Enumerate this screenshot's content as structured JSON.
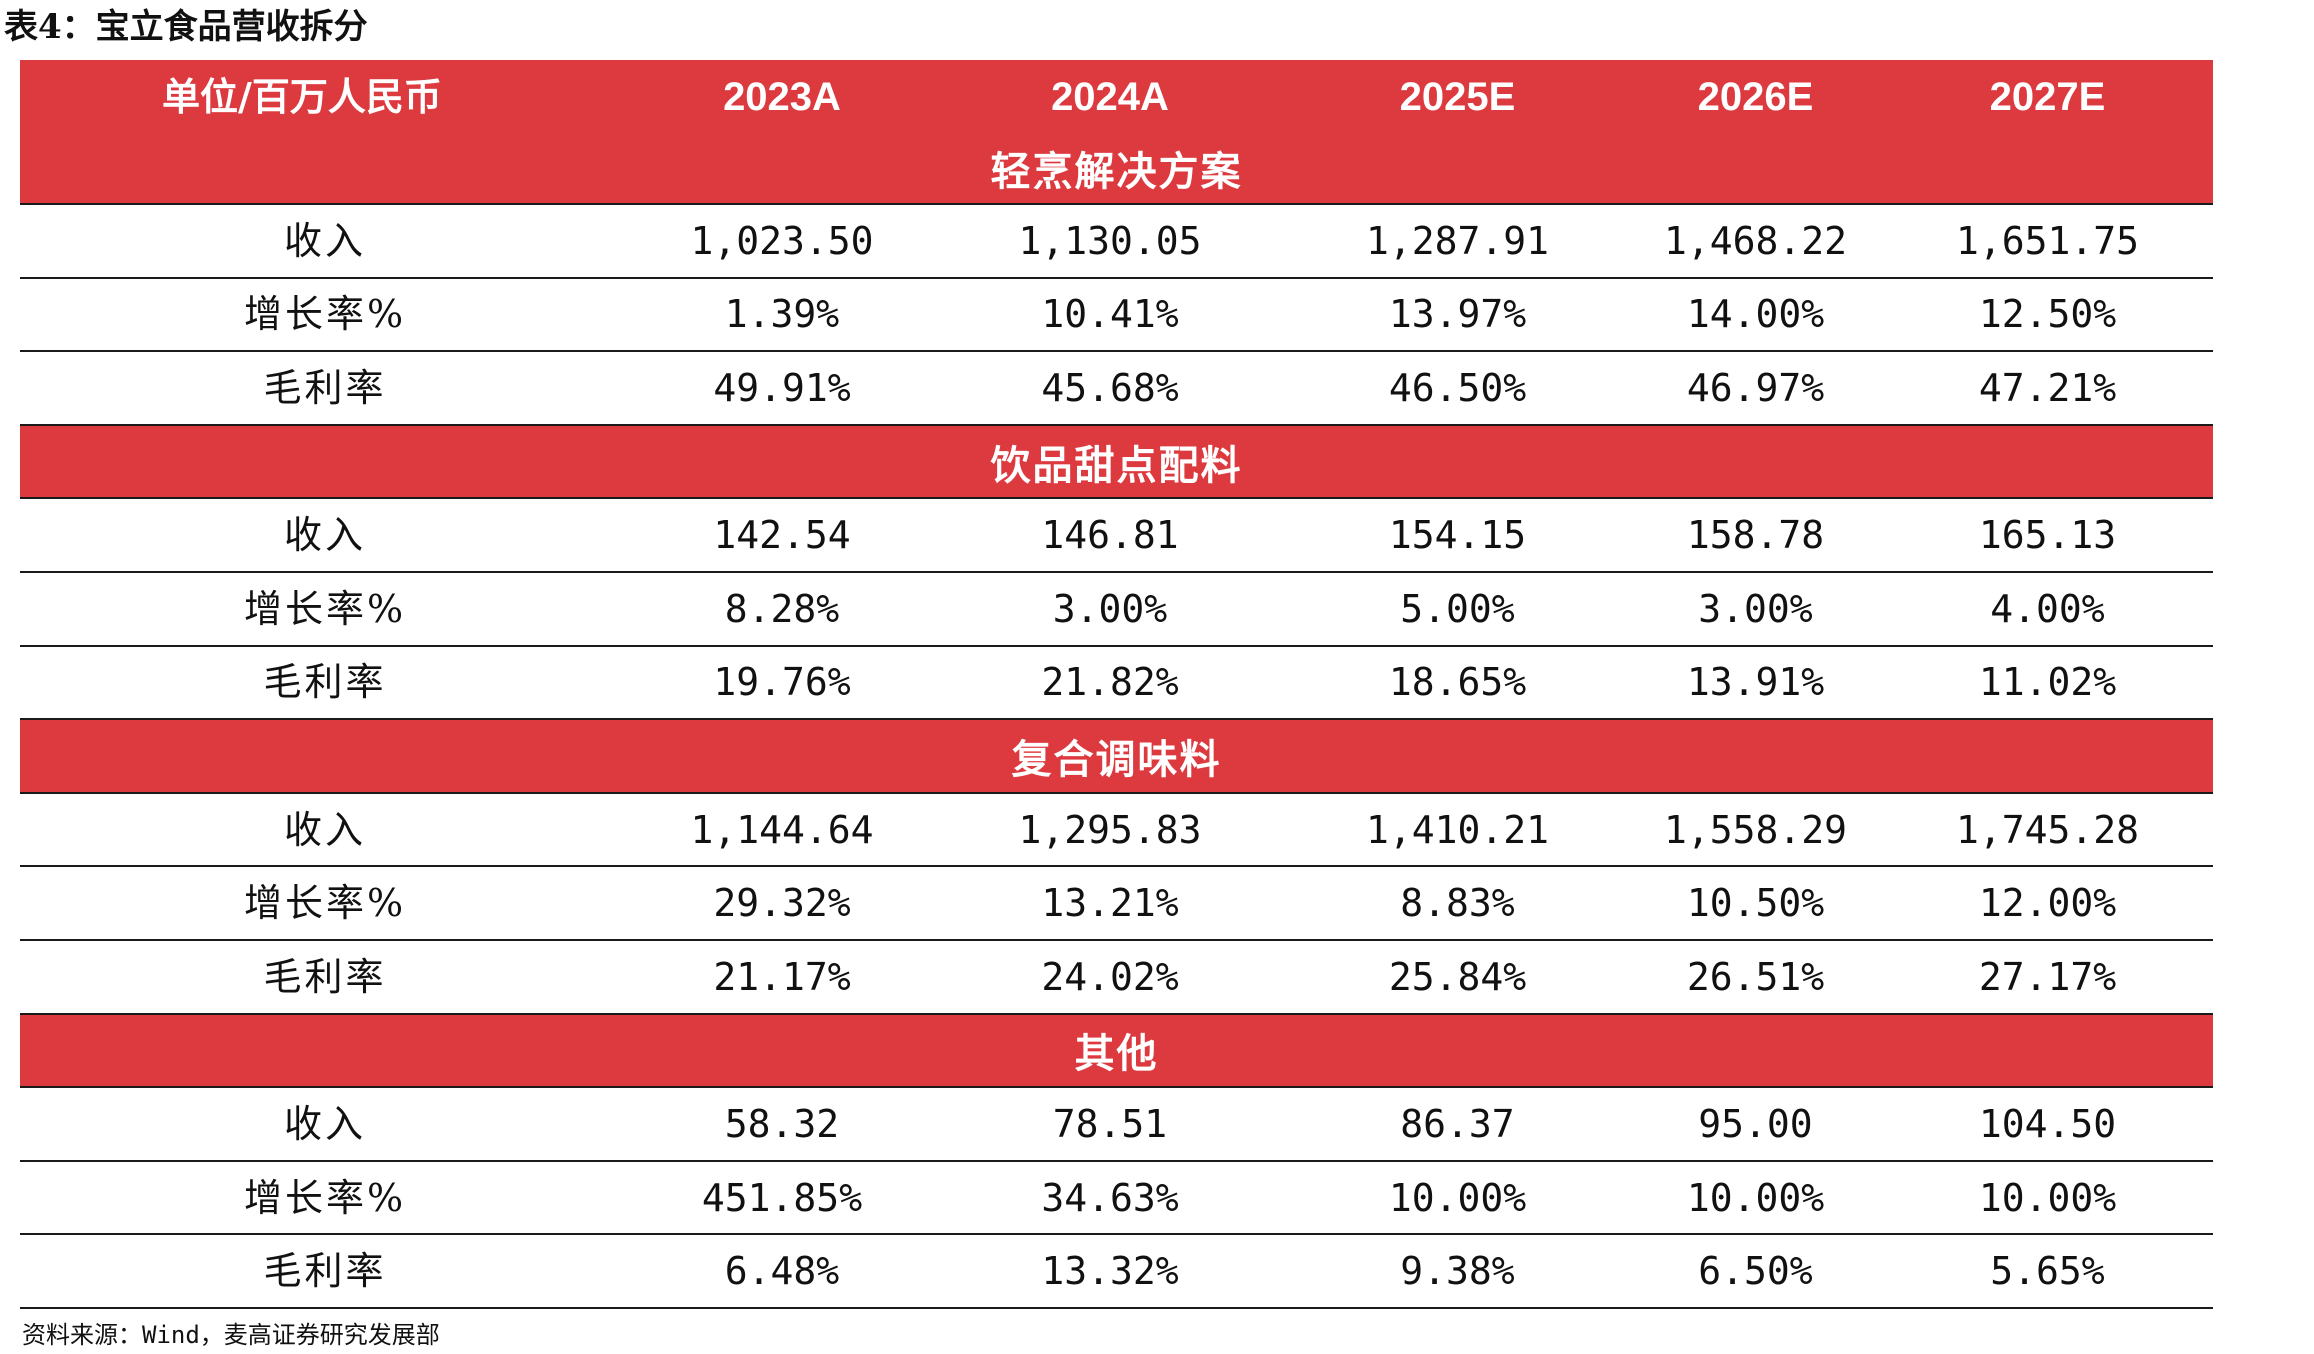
{
  "title": "表4：宝立食品营收拆分",
  "header": {
    "unit": "单位/百万人民币",
    "years": [
      "2023A",
      "2024A",
      "2025E",
      "2026E",
      "2027E"
    ]
  },
  "sections": [
    {
      "name": "轻烹解决方案",
      "rows": [
        {
          "label": "收入",
          "values": [
            "1,023.50",
            "1,130.05",
            "1,287.91",
            "1,468.22",
            "1,651.75"
          ]
        },
        {
          "label": "增长率%",
          "values": [
            "1.39%",
            "10.41%",
            "13.97%",
            "14.00%",
            "12.50%"
          ]
        },
        {
          "label": "毛利率",
          "values": [
            "49.91%",
            "45.68%",
            "46.50%",
            "46.97%",
            "47.21%"
          ]
        }
      ]
    },
    {
      "name": "饮品甜点配料",
      "rows": [
        {
          "label": "收入",
          "values": [
            "142.54",
            "146.81",
            "154.15",
            "158.78",
            "165.13"
          ]
        },
        {
          "label": "增长率%",
          "values": [
            "8.28%",
            "3.00%",
            "5.00%",
            "3.00%",
            "4.00%"
          ]
        },
        {
          "label": "毛利率",
          "values": [
            "19.76%",
            "21.82%",
            "18.65%",
            "13.91%",
            "11.02%"
          ]
        }
      ]
    },
    {
      "name": "复合调味料",
      "rows": [
        {
          "label": "收入",
          "values": [
            "1,144.64",
            "1,295.83",
            "1,410.21",
            "1,558.29",
            "1,745.28"
          ]
        },
        {
          "label": "增长率%",
          "values": [
            "29.32%",
            "13.21%",
            "8.83%",
            "10.50%",
            "12.00%"
          ]
        },
        {
          "label": "毛利率",
          "values": [
            "21.17%",
            "24.02%",
            "25.84%",
            "26.51%",
            "27.17%"
          ]
        }
      ]
    },
    {
      "name": "其他",
      "rows": [
        {
          "label": "收入",
          "values": [
            "58.32",
            "78.51",
            "86.37",
            "95.00",
            "104.50"
          ]
        },
        {
          "label": "增长率%",
          "values": [
            "451.85%",
            "34.63%",
            "10.00%",
            "10.00%",
            "10.00%"
          ]
        },
        {
          "label": "毛利率",
          "values": [
            "6.48%",
            "13.32%",
            "9.38%",
            "6.50%",
            "5.65%"
          ]
        }
      ]
    }
  ],
  "source": "资料来源：Wind，麦高证券研究发展部",
  "colors": {
    "header_bg": "#dc3a3f",
    "header_text": "#ffffff",
    "rule": "#1a1a1a"
  }
}
